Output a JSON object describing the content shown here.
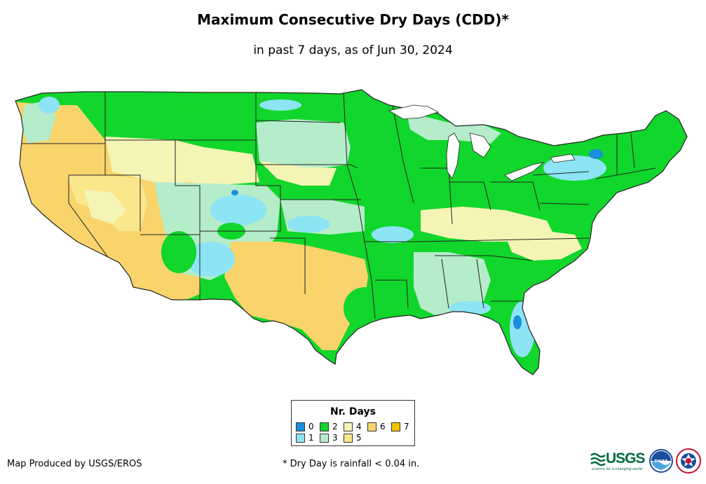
{
  "map": {
    "title": "Maximum Consecutive Dry Days (CDD)*",
    "subtitle": "in past 7 days, as of Jun 30, 2024",
    "region": "Contiguous United States"
  },
  "legend": {
    "title": "Nr. Days",
    "items": [
      {
        "label": "0",
        "color": "#1a8fe0"
      },
      {
        "label": "1",
        "color": "#8de4f5"
      },
      {
        "label": "2",
        "color": "#11d62b"
      },
      {
        "label": "3",
        "color": "#b5ecc9"
      },
      {
        "label": "4",
        "color": "#f4f4b4"
      },
      {
        "label": "5",
        "color": "#fae78c"
      },
      {
        "label": "6",
        "color": "#f8d46a"
      },
      {
        "label": "7",
        "color": "#f5c300"
      }
    ]
  },
  "footer": {
    "credit": "Map Produced by USGS/EROS",
    "note": "* Dry Day is rainfall < 0.04 in."
  },
  "logos": {
    "usgs_word": "USGS",
    "usgs_tagline": "science for a changing world",
    "noaa_text": "noaa"
  },
  "colors": {
    "border": "#222222",
    "text": "#000000"
  }
}
